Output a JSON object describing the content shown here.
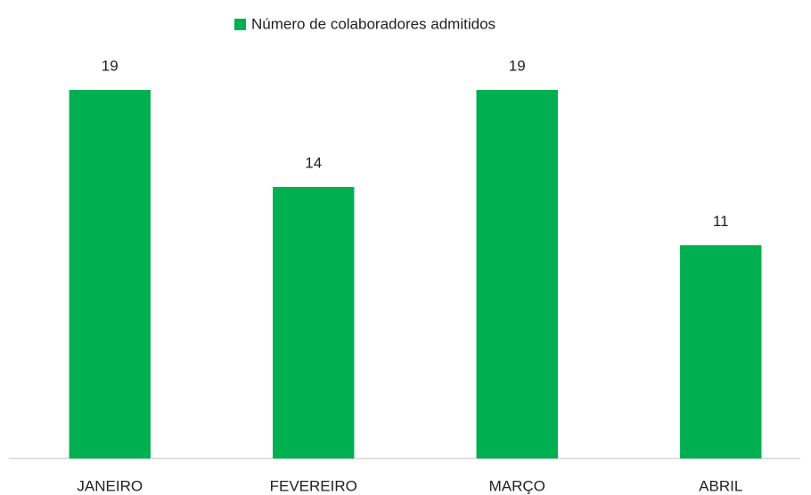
{
  "chart_data": {
    "type": "bar",
    "categories": [
      "JANEIRO",
      "FEVEREIRO",
      "MARÇO",
      "ABRIL"
    ],
    "series": [
      {
        "name": "Número de colaboradores admitidos",
        "color": "#00b050",
        "values": [
          19,
          14,
          19,
          11
        ]
      }
    ],
    "ylim": [
      0,
      19
    ],
    "legend": "top"
  }
}
